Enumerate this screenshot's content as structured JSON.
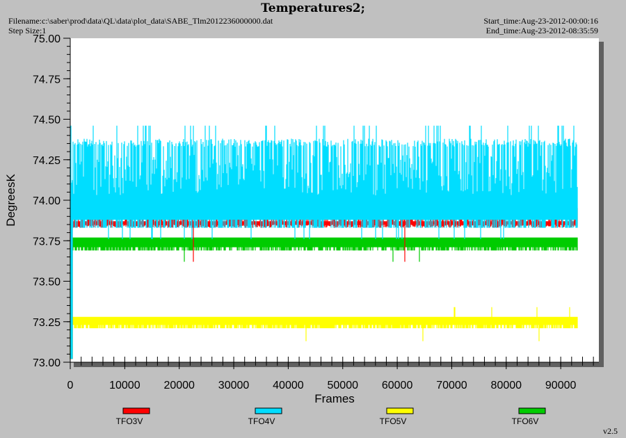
{
  "header": {
    "title": "Temperatures2;",
    "filename": "Filename:c:\\saber\\prod\\data\\QL\\data\\plot_data\\SABE_Tlm2012236000000.dat",
    "step_size": "Step Size:1",
    "start_time": "Start_time:Aug-23-2012-00:00:16",
    "end_time": "End_time:Aug-23-2012-08:35:59"
  },
  "footer": {
    "version": "v2.5"
  },
  "chart_data": {
    "type": "line",
    "title": "Temperatures2;",
    "xlabel": "Frames",
    "ylabel": "DegreesK",
    "xlim": [
      0,
      97000
    ],
    "ylim": [
      73.0,
      75.0
    ],
    "x_ticks": [
      "0",
      "10000",
      "20000",
      "30000",
      "40000",
      "50000",
      "60000",
      "70000",
      "80000",
      "90000"
    ],
    "y_ticks": [
      "73.00",
      "73.25",
      "73.50",
      "73.75",
      "74.00",
      "74.25",
      "74.50",
      "74.75",
      "75.00"
    ],
    "x_end": 93000,
    "legend_position": "bottom",
    "grid": false,
    "series": [
      {
        "name": "TFO3V",
        "color": "#ff0000",
        "base_low": 73.83,
        "base_high": 73.97,
        "spike_high": 74.03,
        "spike_low": 73.62
      },
      {
        "name": "TFO4V",
        "color": "#00ddff",
        "base_low": 73.83,
        "base_high": 74.38,
        "spike_high": 74.46,
        "spike_low": 73.76
      },
      {
        "name": "TFO5V",
        "color": "#ffff00",
        "base_low": 73.21,
        "base_high": 73.28,
        "spike_high": 73.34,
        "spike_low": 73.13
      },
      {
        "name": "TFO6V",
        "color": "#00cc00",
        "base_low": 73.69,
        "base_high": 73.77,
        "spike_high": 73.77,
        "spike_low": 73.62
      }
    ]
  }
}
